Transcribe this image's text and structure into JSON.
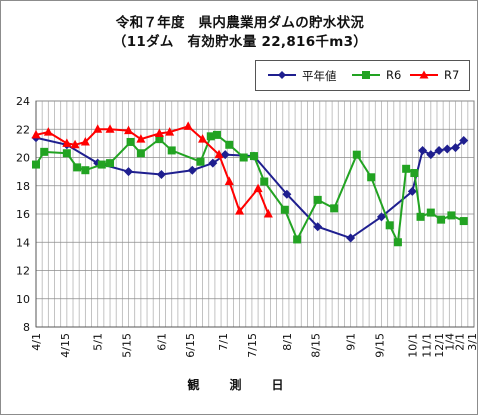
{
  "chart_data": {
    "type": "line",
    "title": "令和７年度　県内農業用ダムの貯水状況",
    "subtitle": "（11ダム　有効貯水量 22,816千m3）",
    "xlabel": "観　測　日",
    "ylabel": "",
    "ylim": [
      8,
      24
    ],
    "yticks": [
      8,
      10,
      12,
      14,
      16,
      18,
      20,
      22,
      24
    ],
    "grid": true,
    "legend_position": "top-right",
    "x_tick_labels": [
      "4/1",
      "4/15",
      "5/1",
      "5/15",
      "6/1",
      "6/15",
      "7/1",
      "7/15",
      "8/1",
      "8/15",
      "9/1",
      "9/15",
      "10/1",
      "11/1",
      "12/1",
      "1/4",
      "2/1",
      "3/1"
    ],
    "x_tick_positions": [
      0,
      14,
      30,
      44,
      61,
      75,
      91,
      105,
      122,
      136,
      153,
      167,
      183,
      190,
      196,
      201,
      206,
      212
    ],
    "x_max": 213,
    "series": [
      {
        "name": "平年値",
        "color": "#1f1f8f",
        "marker": "diamond",
        "points": [
          [
            0,
            21.4
          ],
          [
            15,
            20.9
          ],
          [
            30,
            19.6
          ],
          [
            45,
            19.0
          ],
          [
            61,
            18.8
          ],
          [
            76,
            19.1
          ],
          [
            86,
            19.6
          ],
          [
            92,
            20.2
          ],
          [
            106,
            20.1
          ],
          [
            122,
            17.4
          ],
          [
            137,
            15.1
          ],
          [
            153,
            14.3
          ],
          [
            168,
            15.8
          ],
          [
            183,
            17.6
          ],
          [
            188,
            20.5
          ],
          [
            192,
            20.2
          ],
          [
            196,
            20.5
          ],
          [
            200,
            20.6
          ],
          [
            204,
            20.7
          ],
          [
            208,
            21.2
          ]
        ]
      },
      {
        "name": "R6",
        "color": "#22a322",
        "marker": "square",
        "points": [
          [
            0,
            19.5
          ],
          [
            4,
            20.4
          ],
          [
            15,
            20.3
          ],
          [
            20,
            19.3
          ],
          [
            24,
            19.1
          ],
          [
            32,
            19.5
          ],
          [
            36,
            19.6
          ],
          [
            46,
            21.1
          ],
          [
            51,
            20.3
          ],
          [
            60,
            21.3
          ],
          [
            66,
            20.5
          ],
          [
            80,
            19.7
          ],
          [
            85,
            21.5
          ],
          [
            88,
            21.6
          ],
          [
            94,
            20.9
          ],
          [
            101,
            20.0
          ],
          [
            106,
            20.1
          ],
          [
            111,
            18.3
          ],
          [
            121,
            16.3
          ],
          [
            127,
            14.2
          ],
          [
            137,
            17.0
          ],
          [
            145,
            16.4
          ],
          [
            156,
            20.2
          ],
          [
            163,
            18.6
          ],
          [
            172,
            15.2
          ],
          [
            176,
            14.0
          ],
          [
            180,
            19.2
          ],
          [
            184,
            18.9
          ],
          [
            187,
            15.8
          ],
          [
            192,
            16.1
          ],
          [
            197,
            15.6
          ],
          [
            202,
            15.9
          ],
          [
            208,
            15.5
          ]
        ]
      },
      {
        "name": "R7",
        "color": "#ff0000",
        "marker": "triangle",
        "points": [
          [
            0,
            21.6
          ],
          [
            6,
            21.8
          ],
          [
            15,
            21.0
          ],
          [
            19,
            20.9
          ],
          [
            24,
            21.1
          ],
          [
            30,
            22.0
          ],
          [
            36,
            22.0
          ],
          [
            45,
            21.9
          ],
          [
            51,
            21.3
          ],
          [
            60,
            21.7
          ],
          [
            65,
            21.8
          ],
          [
            74,
            22.2
          ],
          [
            81,
            21.3
          ],
          [
            89,
            20.2
          ],
          [
            94,
            18.3
          ],
          [
            99,
            16.2
          ],
          [
            108,
            17.8
          ],
          [
            113,
            16.0
          ]
        ]
      }
    ]
  }
}
